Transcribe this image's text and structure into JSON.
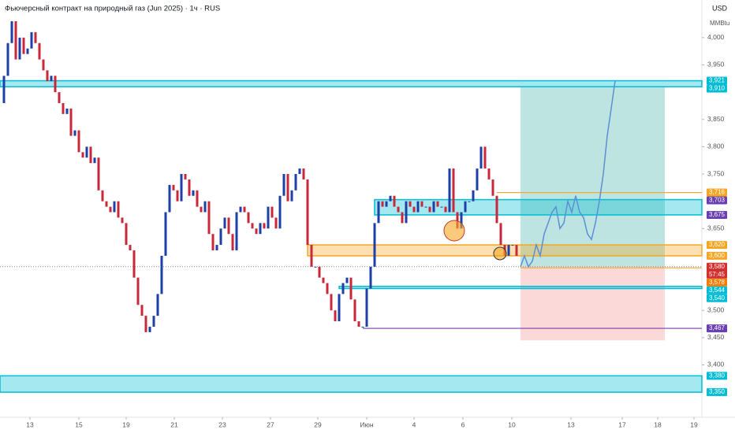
{
  "chart_data": {
    "type": "candlestick",
    "title": "Фьючерсный контракт на природный газ (Jun 2025) · 1ч · RUS",
    "currency": "USD",
    "unit": "MMBtu",
    "up_color": "#1e3fa8",
    "down_color": "#c8283a",
    "xlim": [
      0,
      178
    ],
    "ylim": [
      3304,
      4069
    ],
    "xticks": [
      {
        "value": 7.6,
        "label": "13"
      },
      {
        "value": 20,
        "label": "15"
      },
      {
        "value": 32,
        "label": "19"
      },
      {
        "value": 44.2,
        "label": "21"
      },
      {
        "value": 56.4,
        "label": "23"
      },
      {
        "value": 68.6,
        "label": "27"
      },
      {
        "value": 80.6,
        "label": "29"
      },
      {
        "value": 93,
        "label": "Июн"
      },
      {
        "value": 105,
        "label": "4"
      },
      {
        "value": 117.4,
        "label": "6"
      },
      {
        "value": 129.8,
        "label": "10"
      },
      {
        "value": 144.8,
        "label": "13"
      },
      {
        "value": 157.8,
        "label": "17"
      },
      {
        "value": 166.8,
        "label": "18"
      },
      {
        "value": 176,
        "label": "19"
      }
    ],
    "yticks": [
      {
        "value": 4000,
        "label": "4,000"
      },
      {
        "value": 3950,
        "label": "3,950"
      },
      {
        "value": 3850,
        "label": "3,850"
      },
      {
        "value": 3800,
        "label": "3,800"
      },
      {
        "value": 3750,
        "label": "3,750"
      },
      {
        "value": 3650,
        "label": "3,650"
      },
      {
        "value": 3500,
        "label": "3,500"
      },
      {
        "value": 3450,
        "label": "3,450"
      },
      {
        "value": 3400,
        "label": "3,400"
      }
    ],
    "series": [
      {
        "name": "price",
        "x": [
          0,
          1,
          2,
          3,
          4,
          5,
          6,
          7,
          8,
          9,
          10,
          11,
          12,
          13,
          14,
          15,
          16,
          17,
          18,
          19,
          20,
          21,
          22,
          23,
          24,
          25,
          26,
          27,
          28,
          29,
          30,
          31,
          32,
          33,
          34,
          35,
          36,
          37,
          38,
          39,
          40,
          41,
          42,
          43,
          44,
          45,
          46,
          47,
          48,
          49,
          50,
          51,
          52,
          53,
          54,
          55,
          56,
          57,
          58,
          59,
          60,
          61,
          62,
          63,
          64,
          65,
          66,
          67,
          68,
          69,
          70,
          71,
          72,
          73,
          74,
          75,
          76,
          77,
          78,
          79,
          80,
          81,
          82,
          83,
          84,
          85,
          86,
          87,
          88,
          89,
          90,
          91,
          92,
          93,
          94,
          95,
          96,
          97,
          98,
          99,
          100,
          101,
          102,
          103,
          104,
          105,
          106,
          107,
          108,
          109,
          110,
          111,
          112,
          113,
          114,
          115,
          116,
          117,
          118,
          119,
          120,
          121,
          122,
          123,
          124,
          125,
          126,
          127,
          128,
          129,
          130,
          131
        ],
        "values": [
          3880,
          3930,
          3990,
          4030,
          3960,
          4000,
          3970,
          3980,
          4010,
          3990,
          3960,
          3940,
          3920,
          3930,
          3900,
          3880,
          3860,
          3870,
          3820,
          3830,
          3790,
          3780,
          3800,
          3770,
          3780,
          3720,
          3700,
          3690,
          3680,
          3700,
          3670,
          3660,
          3620,
          3610,
          3560,
          3510,
          3490,
          3460,
          3470,
          3490,
          3530,
          3600,
          3680,
          3730,
          3720,
          3700,
          3750,
          3740,
          3710,
          3720,
          3690,
          3680,
          3700,
          3640,
          3610,
          3620,
          3650,
          3670,
          3640,
          3610,
          3680,
          3690,
          3680,
          3660,
          3650,
          3640,
          3660,
          3650,
          3690,
          3670,
          3650,
          3710,
          3750,
          3700,
          3720,
          3750,
          3760,
          3740,
          3620,
          3580,
          3580,
          3560,
          3550,
          3530,
          3500,
          3480,
          3530,
          3550,
          3560,
          3520,
          3480,
          3470,
          3470,
          3540,
          3580,
          3660,
          3700,
          3690,
          3700,
          3710,
          3690,
          3680,
          3660,
          3700,
          3690,
          3680,
          3700,
          3690,
          3690,
          3680,
          3700,
          3690,
          3690,
          3680,
          3760,
          3680,
          3650,
          3680,
          3700,
          3700,
          3720,
          3760,
          3800,
          3760,
          3740,
          3710,
          3660,
          3620,
          3600,
          3620,
          3620,
          3600
        ]
      },
      {
        "name": "projection",
        "color": "#5b8fd6",
        "x": [
          132,
          133,
          134,
          135,
          136,
          137,
          138,
          139,
          140,
          141,
          142,
          143,
          144,
          145,
          146,
          147,
          148,
          149,
          150,
          151,
          152,
          153,
          154,
          155,
          156
        ],
        "values": [
          3580,
          3600,
          3580,
          3590,
          3620,
          3600,
          3640,
          3660,
          3680,
          3690,
          3650,
          3660,
          3700,
          3680,
          3710,
          3680,
          3670,
          3640,
          3630,
          3660,
          3700,
          3750,
          3820,
          3870,
          3921
        ]
      }
    ],
    "zones": [
      {
        "from": 3910,
        "to": 3921,
        "x_from": 0,
        "color": "#00bcd4"
      },
      {
        "from": 3350,
        "to": 3380,
        "x_from": 0,
        "color": "#00bcd4"
      },
      {
        "from": 3600,
        "to": 3620,
        "x_from": 78,
        "color": "#f5a623"
      },
      {
        "from": 3675,
        "to": 3703,
        "x_from": 95,
        "color": "#00bcd4"
      },
      {
        "from": 3540,
        "to": 3544,
        "x_from": 86,
        "color": "#00bcd4"
      }
    ],
    "lines": [
      {
        "value": 3716,
        "x_from": 126,
        "color": "#f5a623"
      },
      {
        "value": 3578,
        "x_from": 132,
        "color": "#f5a623"
      },
      {
        "value": 3467,
        "x_from": 92,
        "color": "#7b3fb0"
      }
    ],
    "last_price": 3580,
    "position": {
      "x_from": 132,
      "x_to": 168.6,
      "entry": 3580,
      "target": 3910,
      "stop": 3445
    },
    "price_labels": [
      {
        "value": 3921,
        "label": "3,921",
        "color": "#00bcd4"
      },
      {
        "value": 3910,
        "label": "3,910",
        "color": "#00bcd4"
      },
      {
        "value": 3716,
        "label": "3,716",
        "color": "#f5a623"
      },
      {
        "value": 3703,
        "label": "3,703",
        "color": "#6a3fb0"
      },
      {
        "value": 3675,
        "label": "3,675",
        "color": "#6a3fb0"
      },
      {
        "value": 3620,
        "label": "3,620",
        "color": "#f5a623"
      },
      {
        "value": 3600,
        "label": "3,600",
        "color": "#f5a623"
      },
      {
        "value": 3580,
        "label": "3,580",
        "countdown": "57:45",
        "color": "#d32f2f"
      },
      {
        "value": 3578,
        "label": "3,578",
        "color": "#f57c00"
      },
      {
        "value": 3544,
        "label": "3,544",
        "color": "#00bcd4"
      },
      {
        "value": 3540,
        "label": "3,540",
        "color": "#00bcd4"
      },
      {
        "value": 3467,
        "label": "3,467",
        "color": "#6a3fb0"
      },
      {
        "value": 3380,
        "label": "3,380",
        "color": "#00bcd4"
      },
      {
        "value": 3350,
        "label": "3,350",
        "color": "#00bcd4"
      }
    ]
  }
}
